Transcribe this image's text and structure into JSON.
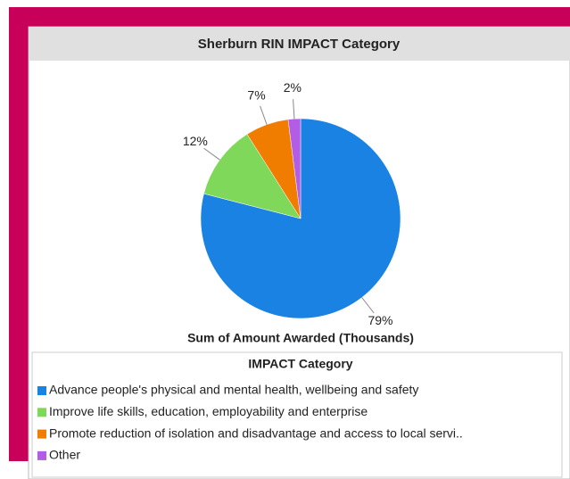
{
  "chart_data": {
    "type": "pie",
    "title": "Sherburn RIN IMPACT Category",
    "subtitle": "Sum of Amount Awarded (Thousands)",
    "legend_title": "IMPACT Category",
    "categories": [
      "Advance people's physical and mental health, wellbeing and safety",
      "Improve life skills, education, employability and enterprise",
      "Promote reduction of isolation and disadvantage and access to local servi..",
      "Other"
    ],
    "values": [
      79,
      12,
      7,
      2
    ],
    "value_labels": [
      "79%",
      "12%",
      "7%",
      "2%"
    ],
    "colors": [
      "#1a82e2",
      "#80d85a",
      "#f07c00",
      "#b35ce6"
    ]
  }
}
